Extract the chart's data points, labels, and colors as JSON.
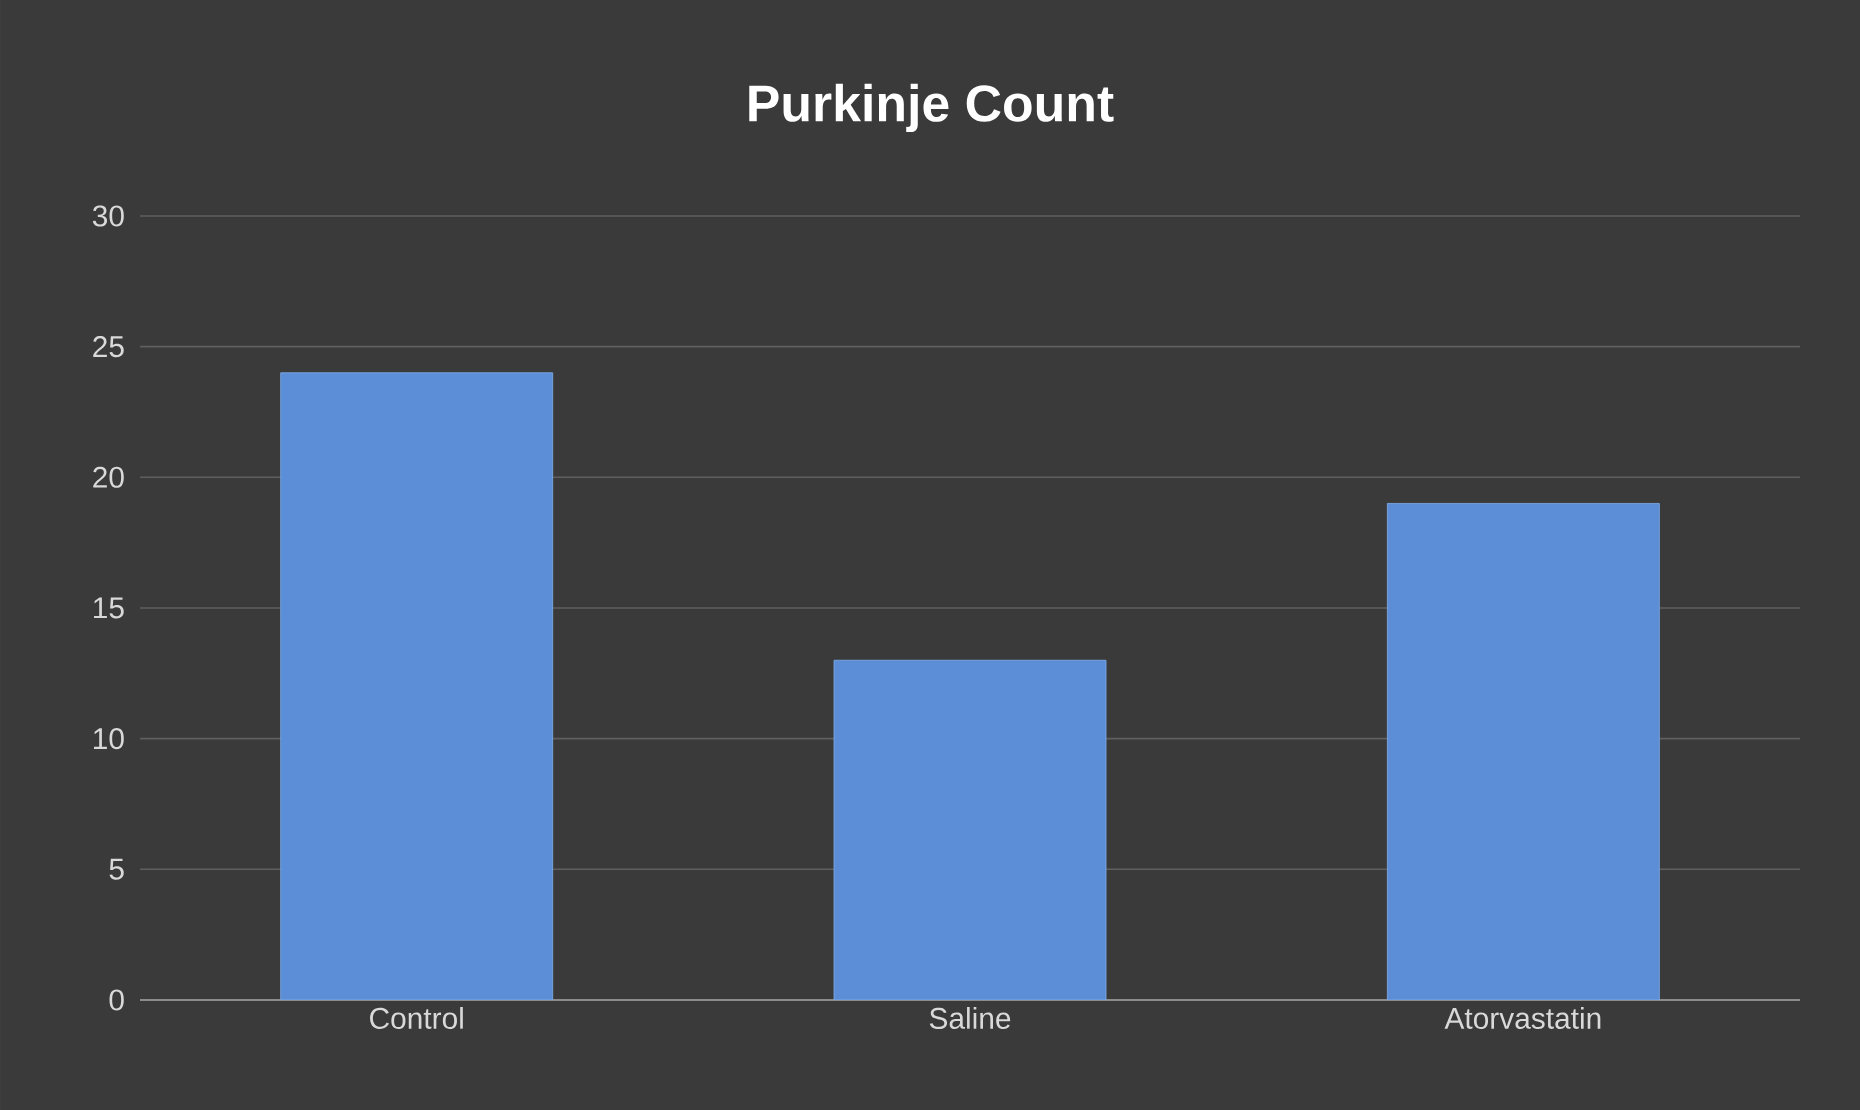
{
  "chart_data": {
    "type": "bar",
    "title": "Purkinje Count",
    "categories": [
      "Control",
      "Saline",
      "Atorvastatin"
    ],
    "values": [
      24,
      13,
      19
    ],
    "color": "#5b8ed6",
    "ylim": [
      0,
      30
    ],
    "yticks": [
      0,
      5,
      10,
      15,
      20,
      25,
      30
    ],
    "grid": "y"
  }
}
